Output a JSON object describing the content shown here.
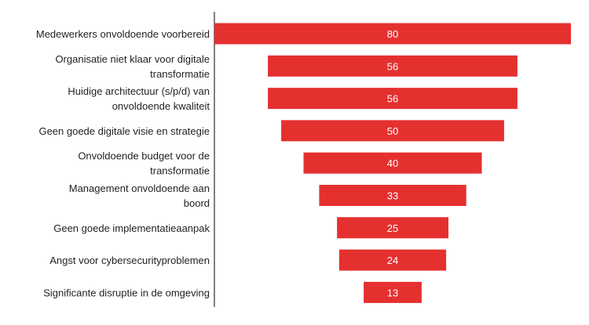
{
  "chart_data": {
    "type": "bar",
    "orientation": "horizontal",
    "alignment": "centered",
    "bar_color": "#e53030",
    "value_label_color": "#ffffff",
    "category_label_color": "#222222",
    "axis_color": "#000000",
    "categories": [
      [
        "Medewerkers onvoldoende voorbereid"
      ],
      [
        "Organisatie niet klaar voor digitale",
        "transformatie"
      ],
      [
        "Huidige architectuur (s/p/d) van",
        "onvoldoende kwaliteit"
      ],
      [
        "Geen goede digitale visie en strategie"
      ],
      [
        "Onvoldoende budget voor de",
        "transformatie"
      ],
      [
        "Management onvoldoende aan",
        "boord"
      ],
      [
        "Geen goede implementatieaanpak"
      ],
      [
        "Angst voor cybersecurityproblemen"
      ],
      [
        "Significante disruptie in de omgeving"
      ]
    ],
    "values": [
      80,
      56,
      56,
      50,
      40,
      33,
      25,
      24,
      13
    ],
    "title": "",
    "xlabel": "",
    "ylabel": ""
  }
}
